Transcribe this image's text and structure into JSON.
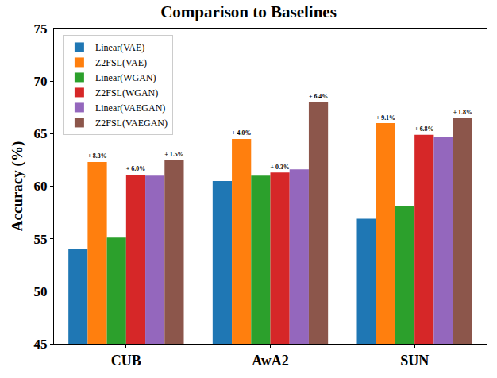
{
  "chart_data": {
    "type": "bar",
    "title": "Comparison to Baselines",
    "y_label": "Accuracy (%)",
    "categories": [
      "CUB",
      "AwA2",
      "SUN"
    ],
    "series": [
      {
        "name": "Linear(VAE)",
        "color": "#1f77b4",
        "values": [
          54.0,
          60.5,
          56.9
        ]
      },
      {
        "name": "Z2FSL(VAE)",
        "color": "#ff7f0e",
        "values": [
          62.3,
          64.5,
          66.0
        ],
        "annotations": [
          "+ 8.3%",
          "+ 4.0%",
          "+ 9.1%"
        ]
      },
      {
        "name": "Linear(WGAN)",
        "color": "#2ca02c",
        "values": [
          55.1,
          61.0,
          58.1
        ]
      },
      {
        "name": "Z2FSL(WGAN)",
        "color": "#d62728",
        "values": [
          61.1,
          61.3,
          64.9
        ],
        "annotations": [
          "+ 6.0%",
          "+ 0.3%",
          "+ 6.8%"
        ]
      },
      {
        "name": "Linear(VAEGAN)",
        "color": "#9467bd",
        "values": [
          61.0,
          61.6,
          64.7
        ]
      },
      {
        "name": "Z2FSL(VAEGAN)",
        "color": "#8c564b",
        "values": [
          62.5,
          68.0,
          66.5
        ],
        "annotations": [
          "+ 1.5%",
          "+ 6.4%",
          "+ 1.8%"
        ]
      }
    ],
    "ylim": [
      45,
      75
    ],
    "yticks": [
      45,
      50,
      55,
      60,
      65,
      70,
      75
    ],
    "grid": false,
    "legend": "upper left"
  }
}
